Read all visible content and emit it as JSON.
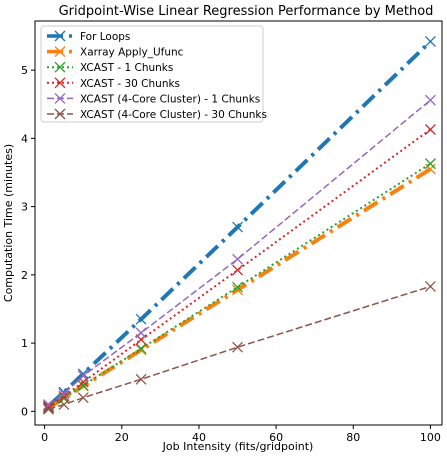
{
  "chart_data": {
    "type": "line",
    "title": "Gridpoint-Wise Linear Regression Performance by Method",
    "xlabel": "Job Intensity (fits/gridpoint)",
    "ylabel": "Computation Time (minutes)",
    "xlim": [
      -2.5,
      103
    ],
    "ylim": [
      -0.2,
      5.72
    ],
    "xticks": [
      0,
      20,
      40,
      60,
      80,
      100
    ],
    "yticks": [
      0,
      1,
      2,
      3,
      4,
      5
    ],
    "grid": false,
    "legend_position": "upper-left",
    "x": [
      1,
      5,
      10,
      25,
      50,
      100
    ],
    "series": [
      {
        "name": "For Loops",
        "color": "#1f77b4",
        "dash": "dashdot-heavy",
        "width": 4,
        "marker": "x",
        "values": [
          0.08,
          0.28,
          0.55,
          1.35,
          2.7,
          5.42
        ]
      },
      {
        "name": "Xarray Apply_Ufunc",
        "color": "#ff7f0e",
        "dash": "dashdot-heavy",
        "width": 4,
        "marker": "x",
        "values": [
          0.05,
          0.19,
          0.37,
          0.9,
          1.78,
          3.55
        ]
      },
      {
        "name": "XCAST - 1 Chunks",
        "color": "#2ca02c",
        "dash": "dotted",
        "width": 2,
        "marker": "x",
        "values": [
          0.05,
          0.19,
          0.38,
          0.92,
          1.82,
          3.63
        ]
      },
      {
        "name": "XCAST - 30 Chunks",
        "color": "#d62728",
        "dash": "dotted",
        "width": 2,
        "marker": "x",
        "values": [
          0.06,
          0.22,
          0.43,
          1.05,
          2.07,
          4.13
        ]
      },
      {
        "name": "XCAST (4-Core Cluster) - 1 Chunks",
        "color": "#9467bd",
        "dash": "dashed",
        "width": 1.5,
        "marker": "x",
        "values": [
          0.1,
          0.26,
          0.52,
          1.15,
          2.23,
          4.56
        ]
      },
      {
        "name": "XCAST (4-Core Cluster) - 30 Chunks",
        "color": "#8c564b",
        "dash": "dashed",
        "width": 1.5,
        "marker": "x",
        "values": [
          0.03,
          0.1,
          0.2,
          0.47,
          0.94,
          1.83
        ]
      }
    ]
  }
}
